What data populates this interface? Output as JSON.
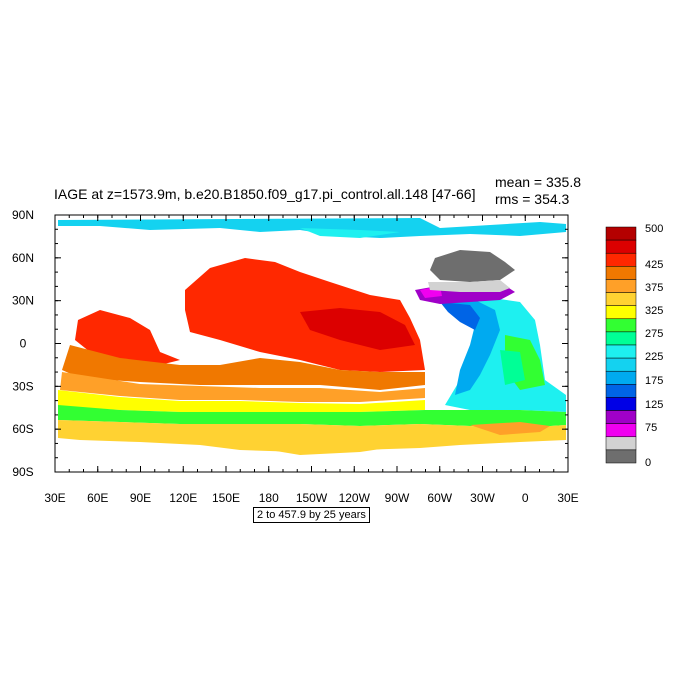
{
  "title": "IAGE at z=1573.9m, b.e20.B1850.f09_g17.pi_control.all.148 [47-66]",
  "stats": {
    "mean": "mean = 335.8",
    "rms": "rms = 354.3"
  },
  "subtitle": "2 to 457.9 by 25 years",
  "chart_data": {
    "type": "heatmap",
    "title": "IAGE at z=1573.9m, b.e20.B1850.f09_g17.pi_control.all.148 [47-66]",
    "x_ticks": [
      "30E",
      "60E",
      "90E",
      "120E",
      "150E",
      "180",
      "150W",
      "120W",
      "90W",
      "60W",
      "30W",
      "0",
      "30E"
    ],
    "y_ticks": [
      "90N",
      "60N",
      "30N",
      "0",
      "30S",
      "60S",
      "90S"
    ],
    "xlim": [
      30,
      390
    ],
    "ylim": [
      -90,
      90
    ],
    "colorbar": {
      "labels": [
        "500",
        "425",
        "375",
        "325",
        "275",
        "225",
        "175",
        "125",
        "75",
        "0"
      ],
      "colors": [
        "#b40000",
        "#dc0000",
        "#ff2800",
        "#f07800",
        "#ffa028",
        "#ffd232",
        "#ffff00",
        "#32ff32",
        "#00ff96",
        "#1ef0f0",
        "#14d2f0",
        "#00aaf0",
        "#0064e6",
        "#0000e6",
        "#a000c8",
        "#f000f0",
        "#d2d2d2",
        "#6e6e6e"
      ]
    }
  }
}
